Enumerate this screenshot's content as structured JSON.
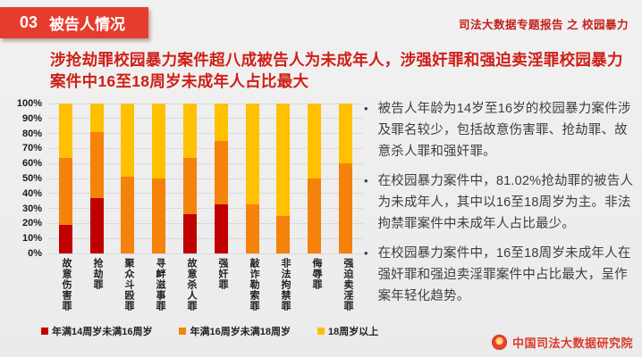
{
  "header": {
    "badge_number": "03",
    "badge_title": "被告人情况",
    "right_text": "司法大数据专题报告 之 校园暴力"
  },
  "headline": "涉抢劫罪校园暴力案件超八成被告人为未成年人，涉强奸罪和强迫卖淫罪校园暴力案件中16至18周岁未成年人占比最大",
  "chart_data": {
    "type": "bar",
    "stacked": true,
    "orientation": "vertical",
    "categories": [
      "故意伤害罪",
      "抢劫罪",
      "聚众斗殴罪",
      "寻衅滋事罪",
      "故意杀人罪",
      "强奸罪",
      "敲诈勒索罪",
      "非法拘禁罪",
      "侮辱罪",
      "强迫卖淫罪"
    ],
    "series": [
      {
        "name": "年满14周岁未满16周岁",
        "color": "#c00000",
        "values": [
          19,
          37,
          0,
          0,
          26,
          33,
          0,
          0,
          0,
          0
        ]
      },
      {
        "name": "年满16周岁未满18周岁",
        "color": "#f5820a",
        "values": [
          45,
          44,
          51,
          50,
          38,
          42,
          33,
          25,
          50,
          60
        ]
      },
      {
        "name": "18周岁以上",
        "color": "#ffc000",
        "values": [
          36,
          19,
          49,
          50,
          36,
          25,
          67,
          75,
          50,
          40
        ]
      }
    ],
    "ylim": [
      0,
      100
    ],
    "yticks": [
      "100%",
      "90%",
      "80%",
      "70%",
      "60%",
      "50%",
      "40%",
      "30%",
      "20%",
      "10%",
      "0%"
    ],
    "grid": true,
    "legend_position": "bottom"
  },
  "bullets": [
    "被告人年龄为14岁至16岁的校园暴力案件涉及罪名较少，包括故意伤害罪、抢劫罪、故意杀人罪和强奸罪。",
    "在校园暴力案件中，81.02%抢劫罪的被告人为未成年人，其中以16至18周岁为主。非法拘禁罪案件中未成年人占比最少。",
    "在校园暴力案件中，16至18周岁未成年人在强奸罪和强迫卖淫罪案件中占比最大，呈作案年轻化趋势。"
  ],
  "bullet_marker": "•",
  "footer": {
    "org": "中国司法大数据研究院",
    "emblem_glyph": "★"
  },
  "colors": {
    "badge_bg": "#e63c2e",
    "headline": "#ce2017",
    "series_red": "#c00000",
    "series_orange": "#f5820a",
    "series_yellow": "#ffc000",
    "footer_text": "#d93a2b",
    "background": "#f0efef"
  }
}
